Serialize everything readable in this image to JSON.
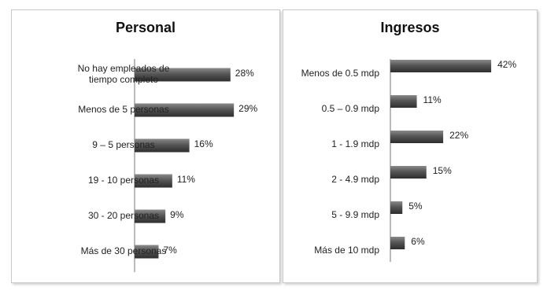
{
  "chart_data": [
    {
      "type": "bar",
      "orientation": "horizontal",
      "title": "Personal",
      "categories": [
        "No hay empleados de tiempo completo",
        "Menos de 5 personas",
        "9 – 5 personas",
        "19 - 10 personas",
        "30 - 20 personas",
        "Más de 30 personas"
      ],
      "category_lines": [
        [
          "No hay empleados de",
          "tiempo completo"
        ],
        [
          "Menos de 5 personas"
        ],
        [
          "9 – 5 personas"
        ],
        [
          "19 - 10 personas"
        ],
        [
          "30 - 20 personas"
        ],
        [
          "Más de 30 personas"
        ]
      ],
      "values": [
        28,
        29,
        16,
        11,
        9,
        7
      ],
      "data_labels": [
        "28%",
        "29%",
        "16%",
        "11%",
        "9%",
        "7%"
      ],
      "unit": "%",
      "grid": false,
      "legend": "none",
      "bar_color": "#555555"
    },
    {
      "type": "bar",
      "orientation": "horizontal",
      "title": "Ingresos",
      "categories": [
        "Menos de 0.5 mdp",
        "0.5 – 0.9 mdp",
        "1 - 1.9 mdp",
        "2 - 4.9 mdp",
        "5 - 9.9 mdp",
        "Más de 10 mdp"
      ],
      "category_lines": [
        [
          "Menos de 0.5 mdp"
        ],
        [
          "0.5 – 0.9 mdp"
        ],
        [
          "1 - 1.9 mdp"
        ],
        [
          "2 - 4.9 mdp"
        ],
        [
          "5 - 9.9 mdp"
        ],
        [
          "Más de 10 mdp"
        ]
      ],
      "values": [
        42,
        11,
        22,
        15,
        5,
        6
      ],
      "data_labels": [
        "42%",
        "11%",
        "22%",
        "15%",
        "5%",
        "6%"
      ],
      "unit": "%",
      "grid": false,
      "legend": "none",
      "bar_color": "#555555"
    }
  ]
}
